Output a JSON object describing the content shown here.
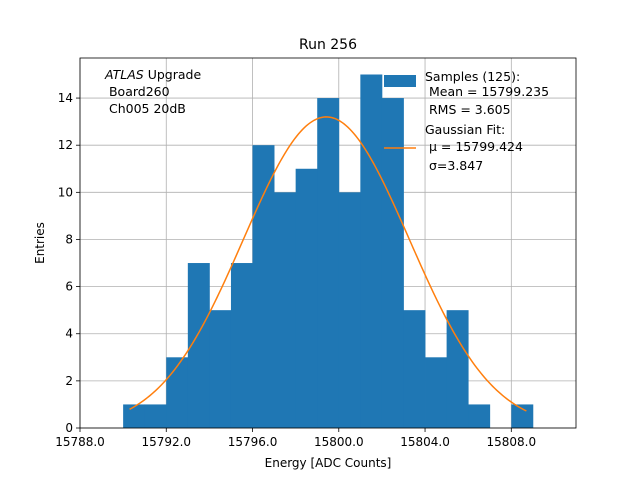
{
  "chart_data": {
    "type": "bar",
    "title": "Run 256",
    "xlabel": "Energy [ADC Counts]",
    "ylabel": "Entries",
    "xlim": [
      15788.0,
      15811.0
    ],
    "ylim": [
      0,
      15.7
    ],
    "x_ticks": [
      15788.0,
      15792.0,
      15796.0,
      15800.0,
      15804.0,
      15808.0
    ],
    "x_tick_labels": [
      "15788.0",
      "15792.0",
      "15796.0",
      "15800.0",
      "15804.0",
      "15808.0"
    ],
    "y_ticks": [
      0,
      2,
      4,
      6,
      8,
      10,
      12,
      14
    ],
    "y_tick_labels": [
      "0",
      "2",
      "4",
      "6",
      "8",
      "10",
      "12",
      "14"
    ],
    "grid": true,
    "annotation": {
      "line1_italic": "ATLAS",
      "line1_rest": " Upgrade",
      "line2": " Board260",
      "line3": " Ch005 20dB"
    },
    "legend_position": "top-right",
    "histogram": {
      "name": "Samples (125):",
      "stats": [
        " Mean = 15799.235",
        " RMS = 3.605"
      ],
      "color": "#1f77b4",
      "bin_edges": [
        15790.0,
        15791.0,
        15792.0,
        15793.0,
        15794.0,
        15795.0,
        15796.0,
        15797.0,
        15798.0,
        15799.0,
        15800.0,
        15801.0,
        15802.0,
        15803.0,
        15804.0,
        15805.0,
        15806.0,
        15807.0,
        15808.0,
        15809.0
      ],
      "counts": [
        1,
        1,
        3,
        7,
        5,
        7,
        12,
        10,
        11,
        14,
        10,
        15,
        14,
        5,
        3,
        5,
        1,
        0,
        1
      ]
    },
    "fit": {
      "name": "Gaussian Fit:",
      "mu_label": " μ = 15799.424",
      "sigma_label": " σ=3.847",
      "mu": 15799.424,
      "sigma": 3.847,
      "amplitude": 13.2,
      "x_range": [
        15790.3,
        15808.7
      ],
      "color": "#ff7f0e"
    }
  }
}
